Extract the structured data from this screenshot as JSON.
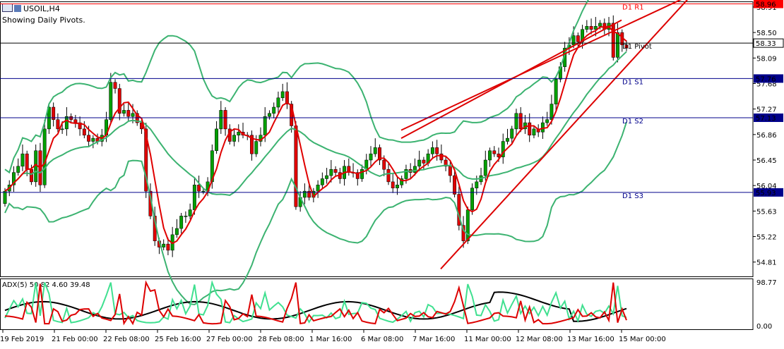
{
  "header": {
    "symbol": "USOIL,H4",
    "subtitle": "Showing Daily Pivots."
  },
  "indicator": {
    "label": "ADX(5) 50.82 4.60 39.48",
    "scale_top": "98.77",
    "scale_bottom": "0.00"
  },
  "pivots": [
    {
      "label": "D1 R1",
      "value": 58.96,
      "price": "58.96",
      "color": "#ff0000"
    },
    {
      "label": "D1 Pivot",
      "value": 58.33,
      "price": "58.33",
      "color": "#000000"
    },
    {
      "label": "D1 S1",
      "value": 57.76,
      "price": "57.76",
      "color": "#00008b"
    },
    {
      "label": "D1 S2",
      "value": 57.13,
      "price": "57.13",
      "color": "#00008b"
    },
    {
      "label": "D1 S3",
      "value": 55.93,
      "price": "55.93",
      "color": "#00008b"
    }
  ],
  "colors": {
    "bull": "#00a000",
    "bear": "#e00000",
    "ma": "#e00000",
    "bands": "#3cb371",
    "adx": "#000000",
    "plus_di": "#40e090",
    "minus_di": "#dd0000"
  },
  "chart_data": {
    "type": "candlestick",
    "price_axis_ticks": [
      "58.91",
      "58.50",
      "58.09",
      "57.68",
      "57.27",
      "56.86",
      "56.45",
      "56.04",
      "55.63",
      "55.22",
      "54.81"
    ],
    "time_axis_labels": [
      "19 Feb 2019",
      "21 Feb 00:00",
      "22 Feb 08:00",
      "25 Feb 16:00",
      "27 Feb 00:00",
      "28 Feb 08:00",
      "1 Mar 16:00",
      "6 Mar 08:00",
      "7 Mar 16:00",
      "11 Mar 00:00",
      "12 Mar 08:00",
      "13 Mar 16:00",
      "15 Mar 00:00"
    ],
    "ohlc_close": [
      55.95,
      56.05,
      56.25,
      56.35,
      56.55,
      56.3,
      56.1,
      56.6,
      56.05,
      56.95,
      57.3,
      57.1,
      56.95,
      56.95,
      57.15,
      57.1,
      57.05,
      56.95,
      56.85,
      56.75,
      56.8,
      56.75,
      56.85,
      57.1,
      57.7,
      57.6,
      57.2,
      57.25,
      57.15,
      57.2,
      57.05,
      56.95,
      55.95,
      55.55,
      55.15,
      55.05,
      55.1,
      55.0,
      55.25,
      55.35,
      55.55,
      55.55,
      55.65,
      56.05,
      55.95,
      55.95,
      56.1,
      56.6,
      56.95,
      57.25,
      56.95,
      56.75,
      56.85,
      56.9,
      56.85,
      56.85,
      56.55,
      56.75,
      56.85,
      57.15,
      57.2,
      57.3,
      57.45,
      57.55,
      57.35,
      57.0,
      55.7,
      55.85,
      55.95,
      55.85,
      55.95,
      56.05,
      56.15,
      56.2,
      56.3,
      56.25,
      56.15,
      56.35,
      56.25,
      56.25,
      56.15,
      56.3,
      56.45,
      56.55,
      56.65,
      56.45,
      56.3,
      56.1,
      56.0,
      56.05,
      56.15,
      56.3,
      56.25,
      56.35,
      56.45,
      56.4,
      56.55,
      56.65,
      56.55,
      56.45,
      56.35,
      56.2,
      55.9,
      55.4,
      55.15,
      55.65,
      56.0,
      56.1,
      56.2,
      56.45,
      56.6,
      56.55,
      56.5,
      56.75,
      56.8,
      56.95,
      57.2,
      56.95,
      57.05,
      56.85,
      56.95,
      56.9,
      57.05,
      57.1,
      57.35,
      57.75,
      57.95,
      58.25,
      58.3,
      58.45,
      58.35,
      58.55,
      58.6,
      58.55,
      58.6,
      58.65,
      58.55,
      58.65,
      58.1,
      58.5,
      58.3,
      58.25
    ]
  }
}
